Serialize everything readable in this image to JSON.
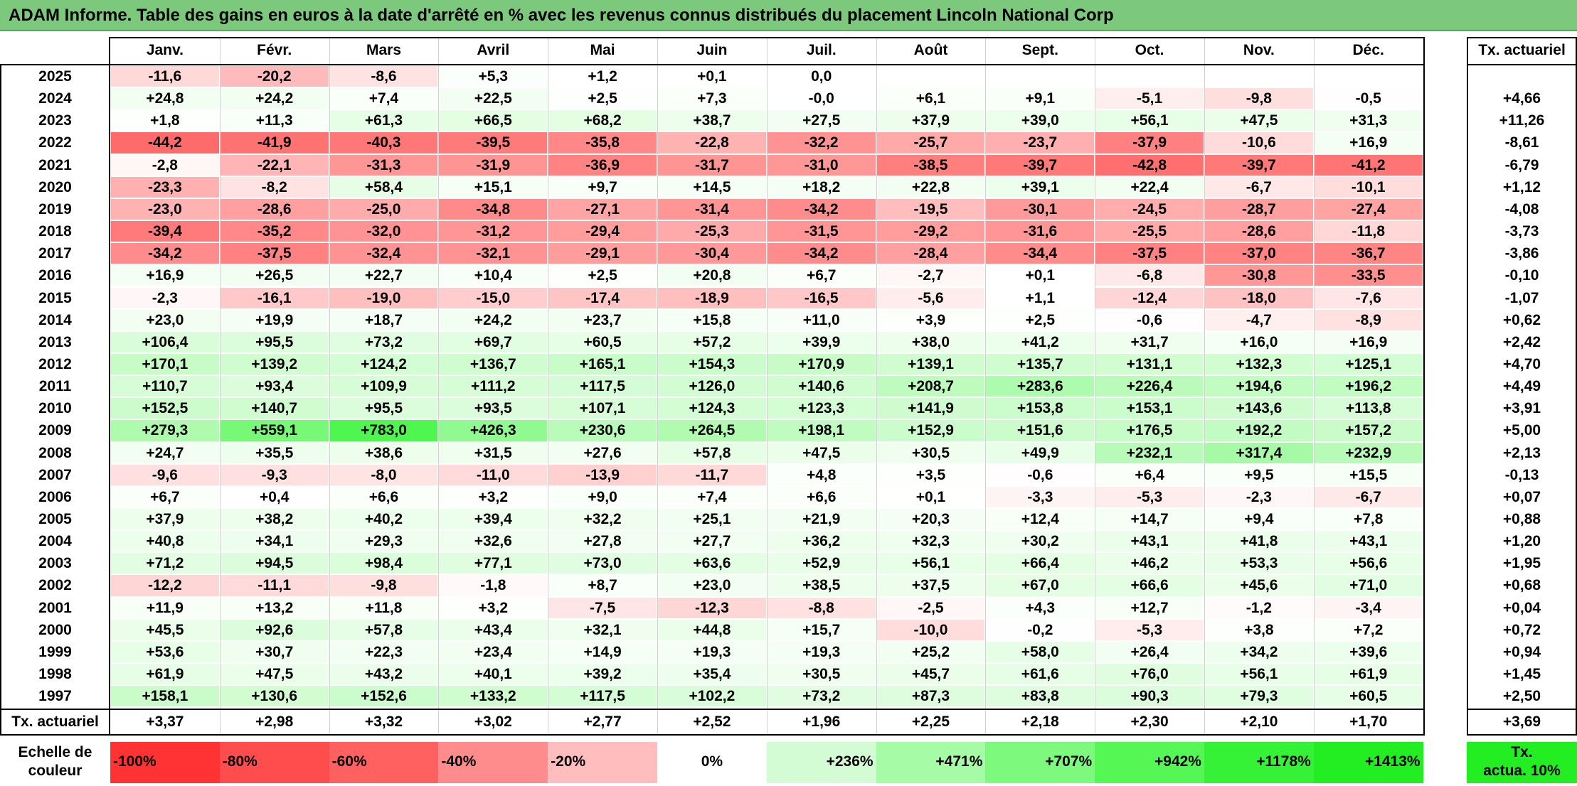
{
  "title": "ADAM Informe. Table des gains en euros à la date d'arrêté en % avec les revenus connus distribués du placement Lincoln National Corp",
  "chart_data": {
    "type": "table",
    "title": "ADAM Informe. Table des gains en euros à la date d'arrêté en % avec les revenus connus distribués du placement Lincoln National Corp",
    "columns": [
      "Janv.",
      "Févr.",
      "Mars",
      "Avril",
      "Mai",
      "Juin",
      "Juil.",
      "Août",
      "Sept.",
      "Oct.",
      "Nov.",
      "Déc."
    ],
    "annual_header": "Tx. actuariel",
    "rows": [
      {
        "year": "2025",
        "values": [
          "-11,6",
          "-20,2",
          "-8,6",
          "+5,3",
          "+1,2",
          "+0,1",
          "0,0",
          "",
          "",
          "",
          "",
          ""
        ],
        "annual": ""
      },
      {
        "year": "2024",
        "values": [
          "+24,8",
          "+24,2",
          "+7,4",
          "+22,5",
          "+2,5",
          "+7,3",
          "-0,0",
          "+6,1",
          "+9,1",
          "-5,1",
          "-9,8",
          "-0,5"
        ],
        "annual": "+4,66"
      },
      {
        "year": "2023",
        "values": [
          "+1,8",
          "+11,3",
          "+61,3",
          "+66,5",
          "+68,2",
          "+38,7",
          "+27,5",
          "+37,9",
          "+39,0",
          "+56,1",
          "+47,5",
          "+31,3"
        ],
        "annual": "+11,26"
      },
      {
        "year": "2022",
        "values": [
          "-44,2",
          "-41,9",
          "-40,3",
          "-39,5",
          "-35,8",
          "-22,8",
          "-32,2",
          "-25,7",
          "-23,7",
          "-37,9",
          "-10,6",
          "+16,9"
        ],
        "annual": "-8,61"
      },
      {
        "year": "2021",
        "values": [
          "-2,8",
          "-22,1",
          "-31,3",
          "-31,9",
          "-36,9",
          "-31,7",
          "-31,0",
          "-38,5",
          "-39,7",
          "-42,8",
          "-39,7",
          "-41,2"
        ],
        "annual": "-6,79"
      },
      {
        "year": "2020",
        "values": [
          "-23,3",
          "-8,2",
          "+58,4",
          "+15,1",
          "+9,7",
          "+14,5",
          "+18,2",
          "+22,8",
          "+39,1",
          "+22,4",
          "-6,7",
          "-10,1"
        ],
        "annual": "+1,12"
      },
      {
        "year": "2019",
        "values": [
          "-23,0",
          "-28,6",
          "-25,0",
          "-34,8",
          "-27,1",
          "-31,4",
          "-34,2",
          "-19,5",
          "-30,1",
          "-24,5",
          "-28,7",
          "-27,4"
        ],
        "annual": "-4,08"
      },
      {
        "year": "2018",
        "values": [
          "-39,4",
          "-35,2",
          "-32,0",
          "-31,2",
          "-29,4",
          "-25,3",
          "-31,5",
          "-29,2",
          "-31,6",
          "-25,5",
          "-28,6",
          "-11,8"
        ],
        "annual": "-3,73"
      },
      {
        "year": "2017",
        "values": [
          "-34,2",
          "-37,5",
          "-32,4",
          "-32,1",
          "-29,1",
          "-30,4",
          "-34,2",
          "-28,4",
          "-34,4",
          "-37,5",
          "-37,0",
          "-36,7"
        ],
        "annual": "-3,86"
      },
      {
        "year": "2016",
        "values": [
          "+16,9",
          "+26,5",
          "+22,7",
          "+10,4",
          "+2,5",
          "+20,8",
          "+6,7",
          "-2,7",
          "+0,1",
          "-6,8",
          "-30,8",
          "-33,5"
        ],
        "annual": "-0,10"
      },
      {
        "year": "2015",
        "values": [
          "-2,3",
          "-16,1",
          "-19,0",
          "-15,0",
          "-17,4",
          "-18,9",
          "-16,5",
          "-5,6",
          "+1,1",
          "-12,4",
          "-18,0",
          "-7,6"
        ],
        "annual": "-1,07"
      },
      {
        "year": "2014",
        "values": [
          "+23,0",
          "+19,9",
          "+18,7",
          "+24,2",
          "+23,7",
          "+15,8",
          "+11,0",
          "+3,9",
          "+2,5",
          "-0,6",
          "-4,7",
          "-8,9"
        ],
        "annual": "+0,62"
      },
      {
        "year": "2013",
        "values": [
          "+106,4",
          "+95,5",
          "+73,2",
          "+69,7",
          "+60,5",
          "+57,2",
          "+39,9",
          "+38,0",
          "+41,2",
          "+31,7",
          "+16,0",
          "+16,9"
        ],
        "annual": "+2,42"
      },
      {
        "year": "2012",
        "values": [
          "+170,1",
          "+139,2",
          "+124,2",
          "+136,7",
          "+165,1",
          "+154,3",
          "+170,9",
          "+139,1",
          "+135,7",
          "+131,1",
          "+132,3",
          "+125,1"
        ],
        "annual": "+4,70"
      },
      {
        "year": "2011",
        "values": [
          "+110,7",
          "+93,4",
          "+109,9",
          "+111,2",
          "+117,5",
          "+126,0",
          "+140,6",
          "+208,7",
          "+283,6",
          "+226,4",
          "+194,6",
          "+196,2"
        ],
        "annual": "+4,49"
      },
      {
        "year": "2010",
        "values": [
          "+152,5",
          "+140,7",
          "+95,5",
          "+93,5",
          "+107,1",
          "+124,3",
          "+123,3",
          "+141,9",
          "+153,8",
          "+153,1",
          "+143,6",
          "+113,8"
        ],
        "annual": "+3,91"
      },
      {
        "year": "2009",
        "values": [
          "+279,3",
          "+559,1",
          "+783,0",
          "+426,3",
          "+230,6",
          "+264,5",
          "+198,1",
          "+152,9",
          "+151,6",
          "+176,5",
          "+192,2",
          "+157,2"
        ],
        "annual": "+5,00"
      },
      {
        "year": "2008",
        "values": [
          "+24,7",
          "+35,5",
          "+38,6",
          "+31,5",
          "+27,6",
          "+57,8",
          "+47,5",
          "+30,5",
          "+49,9",
          "+232,1",
          "+317,4",
          "+232,9"
        ],
        "annual": "+2,13"
      },
      {
        "year": "2007",
        "values": [
          "-9,6",
          "-9,3",
          "-8,0",
          "-11,0",
          "-13,9",
          "-11,7",
          "+4,8",
          "+3,5",
          "-0,6",
          "+6,4",
          "+9,5",
          "+15,5"
        ],
        "annual": "-0,13"
      },
      {
        "year": "2006",
        "values": [
          "+6,7",
          "+0,4",
          "+6,6",
          "+3,2",
          "+9,0",
          "+7,4",
          "+6,6",
          "+0,1",
          "-3,3",
          "-5,3",
          "-2,3",
          "-6,7"
        ],
        "annual": "+0,07"
      },
      {
        "year": "2005",
        "values": [
          "+37,9",
          "+38,2",
          "+40,2",
          "+39,4",
          "+32,2",
          "+25,1",
          "+21,9",
          "+20,3",
          "+12,4",
          "+14,7",
          "+9,4",
          "+7,8"
        ],
        "annual": "+0,88"
      },
      {
        "year": "2004",
        "values": [
          "+40,8",
          "+34,1",
          "+29,3",
          "+32,6",
          "+27,8",
          "+27,7",
          "+36,2",
          "+32,3",
          "+30,2",
          "+43,1",
          "+41,8",
          "+43,1"
        ],
        "annual": "+1,20"
      },
      {
        "year": "2003",
        "values": [
          "+71,2",
          "+94,5",
          "+98,4",
          "+77,1",
          "+73,0",
          "+63,6",
          "+52,9",
          "+56,1",
          "+66,4",
          "+46,2",
          "+53,3",
          "+56,6"
        ],
        "annual": "+1,95"
      },
      {
        "year": "2002",
        "values": [
          "-12,2",
          "-11,1",
          "-9,8",
          "-1,8",
          "+8,7",
          "+23,0",
          "+38,5",
          "+37,5",
          "+67,0",
          "+66,6",
          "+45,6",
          "+71,0"
        ],
        "annual": "+0,68"
      },
      {
        "year": "2001",
        "values": [
          "+11,9",
          "+13,2",
          "+11,8",
          "+3,2",
          "-7,5",
          "-12,3",
          "-8,8",
          "-2,5",
          "+4,3",
          "+12,7",
          "-1,2",
          "-3,4"
        ],
        "annual": "+0,04"
      },
      {
        "year": "2000",
        "values": [
          "+45,5",
          "+92,6",
          "+57,8",
          "+43,4",
          "+32,1",
          "+44,8",
          "+15,7",
          "-10,0",
          "-0,2",
          "-5,3",
          "+3,8",
          "+7,2"
        ],
        "annual": "+0,72"
      },
      {
        "year": "1999",
        "values": [
          "+53,6",
          "+30,7",
          "+22,3",
          "+23,4",
          "+14,9",
          "+19,3",
          "+19,3",
          "+25,2",
          "+58,0",
          "+26,4",
          "+34,2",
          "+39,6"
        ],
        "annual": "+0,94"
      },
      {
        "year": "1998",
        "values": [
          "+61,9",
          "+47,5",
          "+43,2",
          "+40,1",
          "+39,2",
          "+35,4",
          "+30,5",
          "+45,7",
          "+61,6",
          "+76,0",
          "+56,1",
          "+61,9"
        ],
        "annual": "+1,45"
      },
      {
        "year": "1997",
        "values": [
          "+158,1",
          "+130,6",
          "+152,6",
          "+133,2",
          "+117,5",
          "+102,2",
          "+73,2",
          "+87,3",
          "+83,8",
          "+90,3",
          "+79,3",
          "+60,5"
        ],
        "annual": "+2,50"
      }
    ],
    "footer": {
      "label": "Tx. actuariel",
      "values": [
        "+3,37",
        "+2,98",
        "+3,32",
        "+3,02",
        "+2,77",
        "+2,52",
        "+1,96",
        "+2,25",
        "+2,18",
        "+2,30",
        "+2,10",
        "+1,70"
      ],
      "annual": "+3,69"
    },
    "scale": {
      "label_line1": "Echelle de",
      "label_line2": "couleur",
      "steps": [
        {
          "label": "-100%",
          "value": -100,
          "color": "#ff3333"
        },
        {
          "label": "-80%",
          "value": -80,
          "color": "#ff4d4d"
        },
        {
          "label": "-60%",
          "value": -60,
          "color": "#ff6060"
        },
        {
          "label": "-40%",
          "value": -40,
          "color": "#ff8c8c"
        },
        {
          "label": "-20%",
          "value": -20,
          "color": "#ffbdbd"
        },
        {
          "label": "0%",
          "value": 0,
          "color": "#ffffff"
        },
        {
          "label": "+236%",
          "value": 236,
          "color": "#d4fcd4"
        },
        {
          "label": "+471%",
          "value": 471,
          "color": "#a6fca6"
        },
        {
          "label": "+707%",
          "value": 707,
          "color": "#7dfa7d"
        },
        {
          "label": "+942%",
          "value": 942,
          "color": "#55f755"
        },
        {
          "label": "+1178%",
          "value": 1178,
          "color": "#36f236"
        },
        {
          "label": "+1413%",
          "value": 1413,
          "color": "#22ee22"
        }
      ],
      "annual_label_line1": "Tx.",
      "annual_label_line2": "actua. 10%",
      "annual_color": "#22ee22"
    }
  }
}
